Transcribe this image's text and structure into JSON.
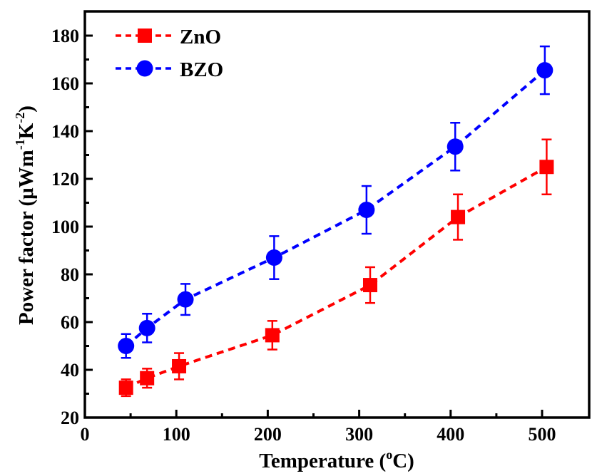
{
  "chart_data": {
    "type": "scatter",
    "title": "",
    "xlabel": "Temperature (°C)",
    "xlabel_parts": [
      "Temperature (",
      "o",
      "C)"
    ],
    "ylabel": "Power factor (μWm⁻¹K⁻²)",
    "ylabel_parts": [
      "Power factor (μWm",
      "-1",
      "K",
      "-2",
      ")"
    ],
    "xlim": [
      0,
      550
    ],
    "ylim": [
      20,
      190
    ],
    "xticks": [
      0,
      100,
      200,
      300,
      400,
      500
    ],
    "xticks_minor": [
      50,
      150,
      250,
      350,
      450
    ],
    "yticks": [
      20,
      40,
      60,
      80,
      100,
      120,
      140,
      160,
      180
    ],
    "yticks_minor": [
      30,
      50,
      70,
      90,
      110,
      130,
      150,
      170
    ],
    "grid": false,
    "legend_position": "top-left",
    "series": [
      {
        "name": "ZnO",
        "marker": "square",
        "line": "dashed",
        "color": "#ff0000",
        "x": [
          45,
          68,
          103,
          205,
          312,
          408,
          505
        ],
        "y": [
          32.5,
          36.5,
          41.5,
          54.5,
          75.5,
          104,
          125
        ],
        "yerr": [
          3.5,
          4,
          5.5,
          6,
          7.5,
          9.5,
          11.5
        ]
      },
      {
        "name": "BZO",
        "marker": "circle",
        "line": "dashed",
        "color": "#0000ff",
        "x": [
          45,
          68,
          110,
          207,
          308,
          405,
          503
        ],
        "y": [
          50,
          57.5,
          69.5,
          87,
          107,
          133.5,
          165.5
        ],
        "yerr": [
          5,
          6,
          6.5,
          9,
          10,
          10,
          10
        ]
      }
    ]
  }
}
